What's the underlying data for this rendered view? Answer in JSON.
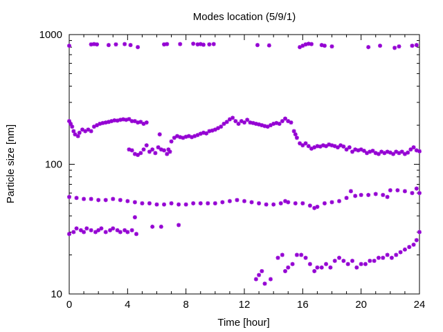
{
  "chart_data": {
    "type": "scatter",
    "title": "Modes location (5/9/1)",
    "xlabel": "Time [hour]",
    "ylabel": "Particle size [nm]",
    "xlim": [
      0,
      24
    ],
    "ylim": [
      10,
      1000
    ],
    "y_scale": "log",
    "x_ticks": [
      0,
      4,
      8,
      12,
      16,
      20,
      24
    ],
    "x_tick_labels": [
      "0",
      "4",
      "8",
      "12",
      "16",
      "20",
      "24"
    ],
    "y_ticks": [
      10,
      100,
      1000
    ],
    "y_tick_labels": [
      "10",
      "100",
      "1000"
    ],
    "grid": false,
    "legend": "none",
    "marker_color": "#9400d3",
    "series": [
      {
        "points": [
          [
            0,
            820
          ],
          [
            1.5,
            840
          ],
          [
            1.7,
            845
          ],
          [
            1.9,
            840
          ],
          [
            2.7,
            830
          ],
          [
            3.2,
            840
          ],
          [
            3.8,
            845
          ],
          [
            4.2,
            830
          ],
          [
            4.7,
            800
          ],
          [
            6.5,
            840
          ],
          [
            6.7,
            845
          ],
          [
            7.6,
            845
          ],
          [
            8.5,
            850
          ],
          [
            8.8,
            840
          ],
          [
            9.0,
            845
          ],
          [
            9.2,
            835
          ],
          [
            9.6,
            840
          ],
          [
            9.9,
            845
          ],
          [
            12.9,
            830
          ],
          [
            13.7,
            825
          ],
          [
            15.8,
            800
          ],
          [
            16.0,
            820
          ],
          [
            16.2,
            840
          ],
          [
            16.4,
            850
          ],
          [
            16.6,
            845
          ],
          [
            17.3,
            830
          ],
          [
            17.5,
            820
          ],
          [
            18.0,
            810
          ],
          [
            20.5,
            800
          ],
          [
            21.3,
            820
          ],
          [
            22.3,
            790
          ],
          [
            22.6,
            810
          ],
          [
            23.5,
            820
          ],
          [
            23.8,
            830
          ]
        ]
      },
      {
        "points": [
          [
            0,
            215
          ],
          [
            0.1,
            205
          ],
          [
            0.2,
            195
          ],
          [
            0.3,
            180
          ],
          [
            0.4,
            170
          ],
          [
            0.6,
            165
          ],
          [
            0.7,
            175
          ],
          [
            0.9,
            185
          ],
          [
            1.1,
            180
          ],
          [
            1.3,
            185
          ],
          [
            1.5,
            180
          ],
          [
            1.7,
            195
          ],
          [
            1.9,
            200
          ],
          [
            2.1,
            205
          ],
          [
            2.3,
            208
          ],
          [
            2.5,
            210
          ],
          [
            2.7,
            212
          ],
          [
            2.9,
            215
          ],
          [
            3.1,
            218
          ],
          [
            3.3,
            217
          ],
          [
            3.5,
            220
          ],
          [
            3.7,
            222
          ],
          [
            3.9,
            220
          ],
          [
            4.1,
            223
          ],
          [
            4.3,
            215
          ],
          [
            4.5,
            215
          ],
          [
            4.7,
            210
          ],
          [
            4.9,
            212
          ],
          [
            5.1,
            205
          ],
          [
            5.3,
            210
          ],
          [
            6.2,
            170
          ],
          [
            6.8,
            130
          ],
          [
            7.0,
            150
          ],
          [
            7.2,
            160
          ],
          [
            7.4,
            165
          ],
          [
            7.6,
            162
          ],
          [
            7.8,
            160
          ],
          [
            8.0,
            163
          ],
          [
            8.2,
            165
          ],
          [
            8.4,
            162
          ],
          [
            8.6,
            165
          ],
          [
            8.8,
            168
          ],
          [
            9.0,
            172
          ],
          [
            9.2,
            175
          ],
          [
            9.4,
            173
          ],
          [
            9.6,
            180
          ],
          [
            9.8,
            182
          ],
          [
            10.0,
            185
          ],
          [
            10.2,
            190
          ],
          [
            10.4,
            195
          ],
          [
            10.6,
            205
          ],
          [
            10.8,
            212
          ],
          [
            11.0,
            222
          ],
          [
            11.2,
            228
          ],
          [
            11.4,
            215
          ],
          [
            11.6,
            205
          ],
          [
            11.8,
            215
          ],
          [
            12.0,
            210
          ],
          [
            12.2,
            220
          ],
          [
            12.4,
            210
          ],
          [
            12.6,
            208
          ],
          [
            12.8,
            205
          ],
          [
            13.0,
            203
          ],
          [
            13.2,
            200
          ],
          [
            13.4,
            197
          ],
          [
            13.6,
            195
          ],
          [
            13.8,
            200
          ],
          [
            14.0,
            205
          ],
          [
            14.2,
            208
          ],
          [
            14.4,
            205
          ],
          [
            14.6,
            215
          ],
          [
            14.8,
            225
          ],
          [
            15.0,
            215
          ],
          [
            15.2,
            210
          ],
          [
            15.4,
            180
          ],
          [
            15.5,
            170
          ],
          [
            15.6,
            160
          ],
          [
            15.8,
            145
          ],
          [
            16.0,
            140
          ],
          [
            16.2,
            145
          ],
          [
            16.4,
            138
          ],
          [
            16.6,
            132
          ],
          [
            16.8,
            135
          ],
          [
            17.0,
            138
          ],
          [
            17.2,
            137
          ],
          [
            17.4,
            140
          ],
          [
            17.6,
            138
          ],
          [
            17.8,
            142
          ],
          [
            18.0,
            140
          ],
          [
            18.2,
            138
          ],
          [
            18.4,
            135
          ],
          [
            18.6,
            140
          ],
          [
            18.8,
            137
          ],
          [
            19.0,
            130
          ],
          [
            19.2,
            135
          ],
          [
            19.4,
            125
          ],
          [
            19.6,
            130
          ],
          [
            19.8,
            128
          ],
          [
            20.0,
            130
          ],
          [
            20.2,
            127
          ],
          [
            20.4,
            122
          ],
          [
            20.6,
            125
          ],
          [
            20.8,
            127
          ],
          [
            21.0,
            122
          ],
          [
            21.2,
            120
          ],
          [
            21.4,
            125
          ],
          [
            21.6,
            122
          ],
          [
            21.8,
            125
          ],
          [
            22.0,
            123
          ],
          [
            22.2,
            120
          ],
          [
            22.4,
            125
          ],
          [
            22.6,
            122
          ],
          [
            22.8,
            125
          ],
          [
            23.0,
            120
          ],
          [
            23.2,
            123
          ],
          [
            23.4,
            130
          ],
          [
            23.6,
            135
          ],
          [
            23.8,
            128
          ],
          [
            24.0,
            126
          ]
        ]
      },
      {
        "points": [
          [
            4.1,
            130
          ],
          [
            4.3,
            128
          ],
          [
            4.5,
            120
          ],
          [
            4.7,
            118
          ],
          [
            4.9,
            122
          ],
          [
            5.1,
            130
          ],
          [
            5.3,
            140
          ],
          [
            5.5,
            125
          ],
          [
            5.7,
            130
          ],
          [
            5.9,
            122
          ],
          [
            6.1,
            135
          ],
          [
            6.3,
            130
          ],
          [
            6.5,
            128
          ],
          [
            6.7,
            120
          ],
          [
            6.9,
            125
          ]
        ]
      },
      {
        "points": [
          [
            0,
            56
          ],
          [
            0.5,
            55
          ],
          [
            1.0,
            54
          ],
          [
            1.5,
            54
          ],
          [
            2.0,
            53
          ],
          [
            2.5,
            53
          ],
          [
            3.0,
            54
          ],
          [
            3.5,
            53
          ],
          [
            4.0,
            52
          ],
          [
            4.5,
            51
          ],
          [
            5.0,
            50
          ],
          [
            5.5,
            50
          ],
          [
            6.0,
            49
          ],
          [
            6.5,
            49
          ],
          [
            7.0,
            50
          ],
          [
            7.5,
            49
          ],
          [
            8.0,
            49
          ],
          [
            8.5,
            50
          ],
          [
            9.0,
            50
          ],
          [
            9.5,
            50
          ],
          [
            10.0,
            50
          ],
          [
            10.5,
            51
          ],
          [
            11.0,
            52
          ],
          [
            11.5,
            53
          ],
          [
            12.0,
            52
          ],
          [
            12.5,
            51
          ],
          [
            13.0,
            50
          ],
          [
            13.5,
            49
          ],
          [
            14.0,
            49
          ],
          [
            14.5,
            50
          ],
          [
            14.8,
            52
          ],
          [
            15.0,
            51
          ],
          [
            15.5,
            50
          ],
          [
            16.0,
            50
          ],
          [
            16.5,
            48
          ],
          [
            16.8,
            46
          ],
          [
            17.0,
            47
          ],
          [
            17.5,
            50
          ],
          [
            18.0,
            51
          ],
          [
            18.5,
            52
          ],
          [
            19.0,
            55
          ],
          [
            19.3,
            62
          ],
          [
            19.6,
            57
          ],
          [
            20.0,
            58
          ],
          [
            20.5,
            58
          ],
          [
            21.0,
            59
          ],
          [
            21.5,
            58
          ],
          [
            21.8,
            56
          ],
          [
            22.0,
            63
          ],
          [
            22.5,
            63
          ],
          [
            23.0,
            62
          ],
          [
            23.5,
            60
          ],
          [
            23.8,
            65
          ],
          [
            24.0,
            60
          ]
        ]
      },
      {
        "points": [
          [
            0,
            29
          ],
          [
            0.3,
            30
          ],
          [
            0.5,
            32
          ],
          [
            0.8,
            31
          ],
          [
            1.0,
            30
          ],
          [
            1.2,
            32
          ],
          [
            1.5,
            31
          ],
          [
            1.8,
            30
          ],
          [
            2.0,
            31
          ],
          [
            2.2,
            32
          ],
          [
            2.5,
            30
          ],
          [
            2.8,
            31
          ],
          [
            3.0,
            32
          ],
          [
            3.3,
            31
          ],
          [
            3.5,
            30
          ],
          [
            3.8,
            31
          ],
          [
            4.0,
            30
          ],
          [
            4.3,
            31
          ],
          [
            4.6,
            29
          ],
          [
            4.5,
            39
          ],
          [
            5.7,
            33
          ],
          [
            6.3,
            33
          ],
          [
            7.5,
            34
          ]
        ]
      },
      {
        "points": [
          [
            12.8,
            13
          ],
          [
            13.0,
            14
          ],
          [
            13.2,
            15
          ],
          [
            13.4,
            12
          ],
          [
            13.8,
            13
          ],
          [
            14.3,
            19
          ],
          [
            14.6,
            20
          ],
          [
            14.8,
            15
          ],
          [
            15.0,
            16
          ],
          [
            15.3,
            17
          ],
          [
            15.6,
            20
          ],
          [
            15.9,
            20
          ],
          [
            16.2,
            19
          ],
          [
            16.5,
            17
          ],
          [
            16.8,
            15
          ],
          [
            17.0,
            16
          ],
          [
            17.3,
            16
          ],
          [
            17.6,
            17
          ],
          [
            17.9,
            16
          ],
          [
            18.2,
            18
          ],
          [
            18.5,
            19
          ],
          [
            18.8,
            18
          ],
          [
            19.1,
            17
          ],
          [
            19.4,
            18
          ],
          [
            19.7,
            16
          ],
          [
            20.0,
            17
          ],
          [
            20.3,
            17
          ],
          [
            20.6,
            18
          ],
          [
            20.9,
            18
          ],
          [
            21.2,
            19
          ],
          [
            21.5,
            19
          ],
          [
            21.8,
            20
          ],
          [
            22.1,
            19
          ],
          [
            22.4,
            20
          ],
          [
            22.7,
            21
          ],
          [
            23.0,
            22
          ],
          [
            23.3,
            23
          ],
          [
            23.6,
            24
          ],
          [
            23.8,
            26
          ],
          [
            24.0,
            30
          ]
        ]
      }
    ]
  }
}
